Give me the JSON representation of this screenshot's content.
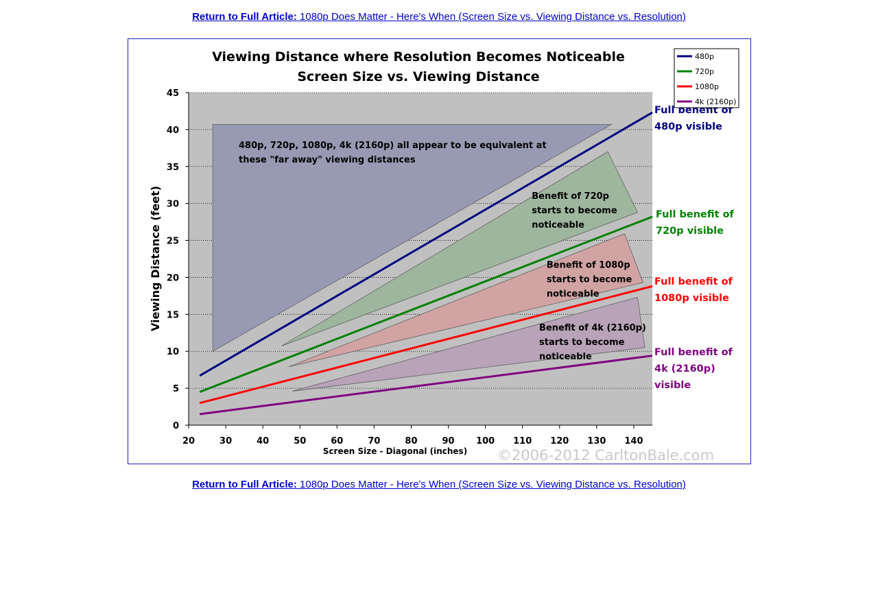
{
  "article_link": {
    "prefix": "Return to Full Article:",
    "title": "1080p Does Matter - Here's When (Screen Size vs. Viewing Distance vs. Resolution)"
  },
  "chart_data": {
    "type": "line",
    "title_line1": "Viewing Distance where Resolution Becomes Noticeable",
    "title_line2": "Screen Size vs. Viewing Distance",
    "xlabel": "Screen Size - Diagonal (inches)",
    "ylabel": "Viewing Distance (feet)",
    "xlim": [
      20,
      145
    ],
    "ylim": [
      0,
      45
    ],
    "xticks": [
      20,
      30,
      40,
      50,
      60,
      70,
      80,
      90,
      100,
      110,
      120,
      130,
      140
    ],
    "yticks": [
      0,
      5,
      10,
      15,
      20,
      25,
      30,
      35,
      40,
      45
    ],
    "grid": "horizontal dotted",
    "legend_position": "top-right",
    "series": [
      {
        "name": "480p",
        "color": "#000080",
        "x": [
          23,
          145
        ],
        "y": [
          6.7,
          42.3
        ],
        "end_label": "Full benefit of 480p visible",
        "end_label_lines": [
          "Full benefit of",
          "480p visible"
        ],
        "end_label_color": "#000080"
      },
      {
        "name": "720p",
        "color": "#008000",
        "x": [
          23,
          145
        ],
        "y": [
          4.5,
          28.2
        ],
        "end_label": "Full benefit of 720p visible",
        "end_label_lines": [
          "Full benefit of",
          "720p visible"
        ],
        "end_label_color": "#008000"
      },
      {
        "name": "1080p",
        "color": "#ff0000",
        "x": [
          23,
          145
        ],
        "y": [
          3.0,
          18.8
        ],
        "end_label": "Full benefit of 1080p visible",
        "end_label_lines": [
          "Full benefit of",
          "1080p visible"
        ],
        "end_label_color": "#ff0000"
      },
      {
        "name": "4k (2160p)",
        "color": "#800080",
        "x": [
          23,
          145
        ],
        "y": [
          1.5,
          9.4
        ],
        "end_label": "Full benefit of 4k (2160p) visible",
        "end_label_lines": [
          "Full benefit of",
          "4k (2160p)",
          "visible"
        ],
        "end_label_color": "#800080"
      }
    ],
    "regions": [
      {
        "fill": "#9899b3",
        "points": [
          [
            26.5,
            10.0
          ],
          [
            26.5,
            40.7
          ],
          [
            134,
            40.7
          ]
        ],
        "label_lines": [
          "480p, 720p, 1080p, 4k (2160p) all appear to be equivalent at",
          "these \"far away\" viewing distances"
        ],
        "label_at": [
          33.5,
          37.5
        ]
      },
      {
        "fill": "#9fb69e",
        "points": [
          [
            45,
            10.7
          ],
          [
            133,
            37.0
          ],
          [
            141,
            28.8
          ]
        ],
        "label_lines": [
          "Benefit of 720p",
          "starts to become",
          "noticeable"
        ],
        "label_at": [
          112.5,
          30.6
        ]
      },
      {
        "fill": "#d2a3a3",
        "points": [
          [
            47,
            7.9
          ],
          [
            137.5,
            25.9
          ],
          [
            142.5,
            19.3
          ]
        ],
        "label_lines": [
          "Benefit of 1080p",
          "starts to become",
          "noticeable"
        ],
        "label_at": [
          116.5,
          21.3
        ]
      },
      {
        "fill": "#b8a3b8",
        "points": [
          [
            48,
            4.6
          ],
          [
            141,
            17.3
          ],
          [
            143,
            10.5
          ]
        ],
        "label_lines": [
          "Benefit of 4k (2160p)",
          "starts to become",
          "noticeable"
        ],
        "label_at": [
          114.5,
          12.8
        ]
      }
    ],
    "watermark": "©2006-2012 CarltonBale.com"
  }
}
